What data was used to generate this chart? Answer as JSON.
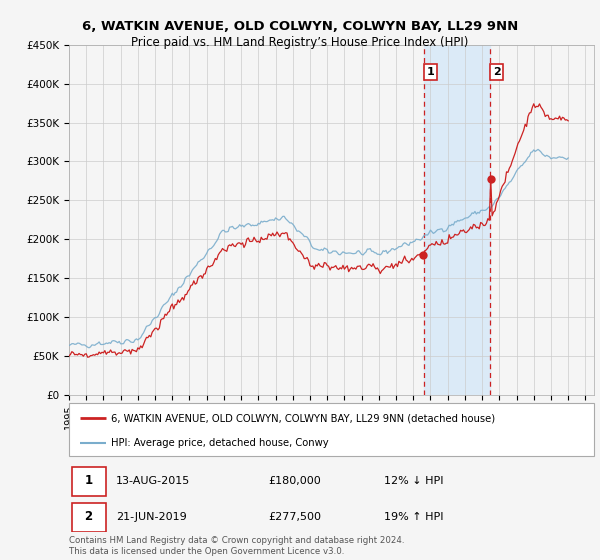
{
  "title": "6, WATKIN AVENUE, OLD COLWYN, COLWYN BAY, LL29 9NN",
  "subtitle": "Price paid vs. HM Land Registry’s House Price Index (HPI)",
  "property_color": "#cc2222",
  "hpi_color": "#7aadcc",
  "bg_color": "#f5f5f5",
  "plot_bg": "#f5f5f5",
  "grid_color": "#cccccc",
  "highlight_bg": "#dbeaf7",
  "vline_color": "#cc2222",
  "ylim": [
    0,
    450000
  ],
  "yticks": [
    0,
    50000,
    100000,
    150000,
    200000,
    250000,
    300000,
    350000,
    400000,
    450000
  ],
  "ytick_labels": [
    "£0",
    "£50K",
    "£100K",
    "£150K",
    "£200K",
    "£250K",
    "£300K",
    "£350K",
    "£400K",
    "£450K"
  ],
  "xlim_start": 1995.0,
  "xlim_end": 2025.5,
  "xticks": [
    1995,
    1996,
    1997,
    1998,
    1999,
    2000,
    2001,
    2002,
    2003,
    2004,
    2005,
    2006,
    2007,
    2008,
    2009,
    2010,
    2011,
    2012,
    2013,
    2014,
    2015,
    2016,
    2017,
    2018,
    2019,
    2020,
    2021,
    2022,
    2023,
    2024,
    2025
  ],
  "transaction1_x": 2015.617,
  "transaction1_y": 180000,
  "transaction2_x": 2019.474,
  "transaction2_y": 277500,
  "transaction1_label": "1",
  "transaction2_label": "2",
  "transaction1_date": "13-AUG-2015",
  "transaction1_price": "£180,000",
  "transaction1_hpi": "12% ↓ HPI",
  "transaction2_date": "21-JUN-2019",
  "transaction2_price": "£277,500",
  "transaction2_hpi": "19% ↑ HPI",
  "highlight_x1": 2015.617,
  "highlight_x2": 2019.474,
  "legend_property": "6, WATKIN AVENUE, OLD COLWYN, COLWYN BAY, LL29 9NN (detached house)",
  "legend_hpi": "HPI: Average price, detached house, Conwy",
  "footer": "Contains HM Land Registry data © Crown copyright and database right 2024.\nThis data is licensed under the Open Government Licence v3.0."
}
